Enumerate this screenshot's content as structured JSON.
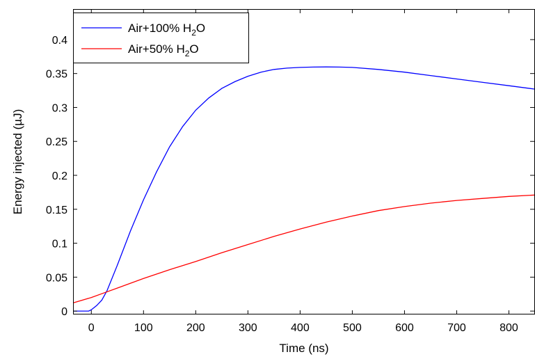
{
  "chart_data": {
    "type": "line",
    "title": "",
    "xlabel": "Time (ns)",
    "ylabel": "Energy injected (µJ)",
    "xlim": [
      -35,
      850
    ],
    "ylim": [
      -0.005,
      0.445
    ],
    "xticks": [
      0,
      100,
      200,
      300,
      400,
      500,
      600,
      700,
      800
    ],
    "yticks": [
      0,
      0.05,
      0.1,
      0.15,
      0.2,
      0.25,
      0.3,
      0.35,
      0.4
    ],
    "xtick_labels": [
      "0",
      "100",
      "200",
      "300",
      "400",
      "500",
      "600",
      "700",
      "800"
    ],
    "ytick_labels": [
      "0",
      "0.05",
      "0.1",
      "0.15",
      "0.2",
      "0.25",
      "0.3",
      "0.35",
      "0.4"
    ],
    "grid": false,
    "legend_position": "top-left",
    "series": [
      {
        "name": "Air+100% H₂O",
        "legend_base": "Air+100% H",
        "legend_sub": "2",
        "legend_tail": "O",
        "color": "#0000ff",
        "x": [
          -35,
          -5,
          0,
          10,
          20,
          30,
          50,
          75,
          100,
          125,
          150,
          175,
          200,
          225,
          250,
          275,
          300,
          325,
          350,
          375,
          400,
          425,
          450,
          475,
          500,
          550,
          600,
          650,
          700,
          750,
          800,
          850
        ],
        "y": [
          0.0,
          0.0,
          0.002,
          0.008,
          0.016,
          0.03,
          0.068,
          0.118,
          0.164,
          0.205,
          0.242,
          0.272,
          0.296,
          0.314,
          0.328,
          0.338,
          0.346,
          0.352,
          0.356,
          0.358,
          0.359,
          0.3595,
          0.3597,
          0.3595,
          0.359,
          0.356,
          0.352,
          0.347,
          0.342,
          0.337,
          0.332,
          0.327
        ]
      },
      {
        "name": "Air+50% H₂O",
        "legend_base": "Air+50% H",
        "legend_sub": "2",
        "legend_tail": "O",
        "color": "#ff0000",
        "x": [
          -35,
          0,
          25,
          50,
          100,
          150,
          200,
          250,
          300,
          350,
          400,
          450,
          500,
          550,
          600,
          650,
          700,
          750,
          800,
          850
        ],
        "y": [
          0.012,
          0.02,
          0.027,
          0.034,
          0.048,
          0.061,
          0.073,
          0.086,
          0.098,
          0.11,
          0.121,
          0.131,
          0.14,
          0.148,
          0.154,
          0.159,
          0.163,
          0.166,
          0.169,
          0.171
        ]
      }
    ]
  }
}
